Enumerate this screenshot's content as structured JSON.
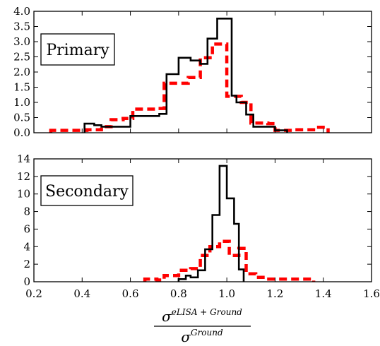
{
  "chart_data": [
    {
      "type": "histogram",
      "panel_label": "Primary",
      "ylim": [
        0,
        4.0
      ],
      "yticks": [
        "0.0",
        "0.5",
        "1.0",
        "1.5",
        "2.0",
        "2.5",
        "3.0",
        "3.5",
        "4.0"
      ],
      "xlim": [
        0.2,
        1.6
      ],
      "grid": false,
      "series": [
        {
          "style": "solid",
          "color": "#000000",
          "edges": [
            0.41,
            0.45,
            0.48,
            0.6,
            0.72,
            0.75,
            0.8,
            0.85,
            0.89,
            0.92,
            0.96,
            1.02,
            1.04,
            1.08,
            1.11,
            1.16,
            1.2,
            1.25
          ],
          "values": [
            0.3,
            0.25,
            0.2,
            0.55,
            0.62,
            1.93,
            2.47,
            2.38,
            2.27,
            3.1,
            3.76,
            1.22,
            1.0,
            0.6,
            0.2,
            0.2,
            0.08
          ]
        },
        {
          "style": "dashed",
          "color": "#ff0000",
          "edges": [
            0.27,
            0.42,
            0.48,
            0.52,
            0.57,
            0.61,
            0.71,
            0.74,
            0.77,
            0.84,
            0.89,
            0.94,
            1.0,
            1.06,
            1.1,
            1.17,
            1.2,
            1.28,
            1.32,
            1.37,
            1.42
          ],
          "values": [
            0.08,
            0.1,
            0.2,
            0.43,
            0.47,
            0.78,
            0.8,
            1.63,
            1.63,
            1.82,
            2.47,
            2.92,
            1.2,
            1.0,
            0.32,
            0.3,
            0.08,
            0.1,
            0.1,
            0.18
          ]
        }
      ]
    },
    {
      "type": "histogram",
      "panel_label": "Secondary",
      "ylim": [
        0,
        14
      ],
      "yticks": [
        "0",
        "2",
        "4",
        "6",
        "8",
        "10",
        "12",
        "14"
      ],
      "xlim": [
        0.2,
        1.6
      ],
      "xticks": [
        "0.2",
        "0.4",
        "0.6",
        "0.8",
        "1.0",
        "1.2",
        "1.4",
        "1.6"
      ],
      "xlabel_numerator": "eLISA + Ground",
      "xlabel_denominator": "Ground",
      "grid": false,
      "series": [
        {
          "style": "solid",
          "color": "#000000",
          "edges": [
            0.8,
            0.83,
            0.85,
            0.88,
            0.91,
            0.94,
            0.97,
            1.0,
            1.03,
            1.05,
            1.07
          ],
          "values": [
            0.3,
            0.7,
            0.5,
            1.3,
            3.7,
            7.6,
            13.2,
            9.5,
            6.6,
            1.4
          ]
        },
        {
          "style": "dashed",
          "color": "#ff0000",
          "edges": [
            0.66,
            0.71,
            0.74,
            0.8,
            0.85,
            0.89,
            0.93,
            0.97,
            1.01,
            1.05,
            1.08,
            1.12,
            1.16,
            1.36
          ],
          "values": [
            0.3,
            0.2,
            0.7,
            1.3,
            1.5,
            3.0,
            4.0,
            4.6,
            3.0,
            3.8,
            0.9,
            0.5,
            0.3
          ]
        }
      ]
    }
  ]
}
